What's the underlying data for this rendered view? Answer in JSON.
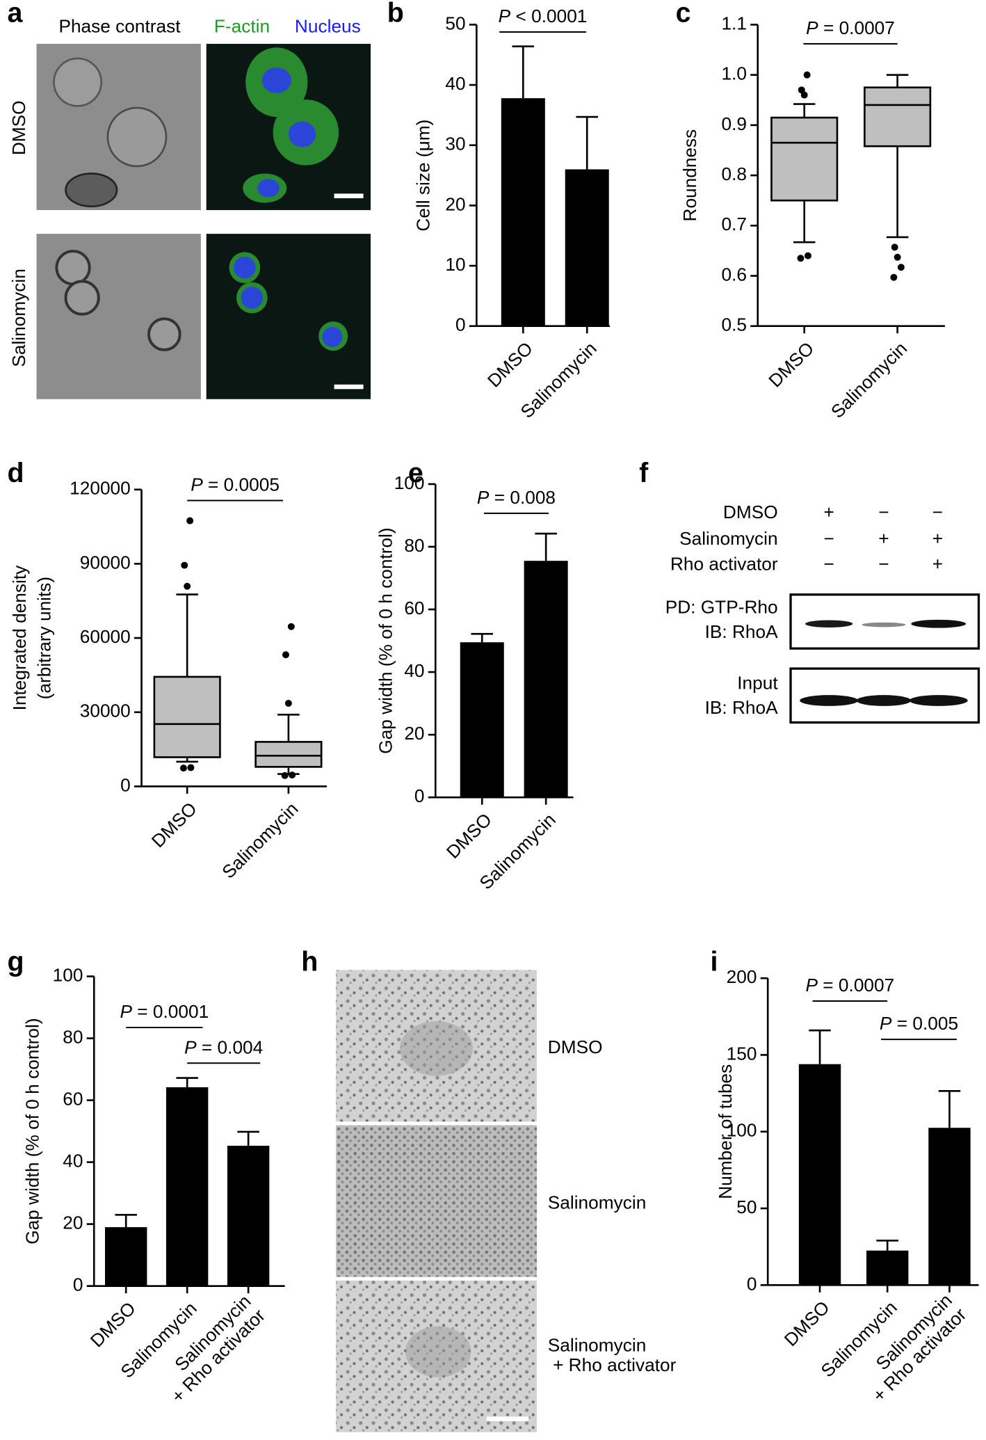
{
  "figure_a": {
    "panel": "a",
    "headers": [
      "Phase contrast",
      "F-actin",
      "Nucleus"
    ],
    "rows": [
      "DMSO",
      "Salinomycin"
    ]
  },
  "chart_data": [
    {
      "type": "bar",
      "panel": "b",
      "y_label": "Cell size (μm)",
      "categories": [
        "DMSO",
        "Salinomycin"
      ],
      "values": [
        37.8,
        26
      ],
      "errors": [
        8.6,
        8.7
      ],
      "color": "#000000",
      "ylim": [
        0,
        50
      ],
      "yticks": [
        0,
        10,
        20,
        30,
        40,
        50
      ],
      "annotations": [
        "P < 0.0001"
      ]
    },
    {
      "type": "box",
      "panel": "c",
      "y_label": "Roundness",
      "categories": [
        "DMSO",
        "Salinomycin"
      ],
      "color": "#bfbfbf",
      "boxes": [
        {
          "whisker_low": 0.667,
          "q1": 0.75,
          "median": 0.865,
          "q3": 0.915,
          "whisker_high": 0.942,
          "outliers": [
            0.635,
            0.64,
            0.96,
            0.97,
            1.0
          ]
        },
        {
          "whisker_low": 0.677,
          "q1": 0.858,
          "median": 0.94,
          "q3": 0.975,
          "whisker_high": 1.0,
          "outliers": [
            0.597,
            0.617,
            0.637,
            0.657
          ]
        }
      ],
      "ylim": [
        0.5,
        1.1
      ],
      "yticks": [
        0.5,
        0.6,
        0.7,
        0.8,
        0.9,
        {
          "value": 1,
          "label": "1.0"
        },
        1.1
      ],
      "annotations": [
        "P = 0.0007"
      ]
    },
    {
      "type": "box",
      "panel": "d",
      "y_label": [
        "Integrated density",
        "(arbitrary units)"
      ],
      "categories": [
        "DMSO",
        "Salinomycin"
      ],
      "color": "#bfbfbf",
      "boxes": [
        {
          "whisker_low": 10000,
          "q1": 11800,
          "median": 25200,
          "q3": 44300,
          "whisker_high": 77600,
          "outliers": [
            7400,
            7600,
            80900,
            89400,
            107400
          ]
        },
        {
          "whisker_low": 5000,
          "q1": 7900,
          "median": 12400,
          "q3": 18000,
          "whisker_high": 29000,
          "outliers": [
            4400,
            4600,
            33600,
            53200,
            64600
          ]
        }
      ],
      "ylim": [
        0,
        120000
      ],
      "yticks": [
        0,
        30000,
        60000,
        90000,
        120000
      ],
      "annotations": [
        "P = 0.0005"
      ]
    },
    {
      "type": "bar",
      "panel": "e",
      "y_label": "Gap width (% of 0 h control)",
      "categories": [
        "DMSO",
        "Salinomycin"
      ],
      "values": [
        49.5,
        75.5
      ],
      "errors": [
        2.7,
        8.7
      ],
      "color": "#000000",
      "ylim": [
        0,
        100
      ],
      "yticks": [
        0,
        20,
        40,
        60,
        80,
        100
      ],
      "annotations": [
        "P = 0.008"
      ]
    },
    {
      "type": "bar",
      "panel": "g",
      "y_label": "Gap width (% of 0 h control)",
      "categories": [
        "DMSO",
        "Salinomycin",
        "Salinomycin\n+ Rho activator"
      ],
      "values": [
        19,
        64.2,
        45.3
      ],
      "errors": [
        4,
        3,
        4.5
      ],
      "color": "#000000",
      "ylim": [
        0,
        100
      ],
      "yticks": [
        0,
        20,
        40,
        60,
        80,
        100
      ],
      "annotations": [
        "P = 0.0001",
        "P = 0.004"
      ]
    },
    {
      "type": "bar",
      "panel": "i",
      "y_label": "Number of tubes",
      "categories": [
        "DMSO",
        "Salinomycin",
        "Salinomycin\n+ Rho activator"
      ],
      "values": [
        144,
        22.5,
        102.5
      ],
      "errors": [
        22,
        6.5,
        24
      ],
      "color": "#000000",
      "ylim": [
        0,
        200
      ],
      "yticks": [
        0,
        50,
        100,
        150,
        200
      ],
      "annotations": [
        "P = 0.0007",
        "P = 0.005"
      ]
    }
  ],
  "figure_f": {
    "panel": "f",
    "conditions": [
      {
        "label": "DMSO",
        "marks": [
          "+",
          "−",
          "−"
        ]
      },
      {
        "label": "Salinomycin",
        "marks": [
          "−",
          "+",
          "+"
        ]
      },
      {
        "label": "Rho activator",
        "marks": [
          "−",
          "−",
          "+"
        ]
      }
    ],
    "blots": [
      {
        "lines": [
          "PD: GTP-Rho",
          "IB: RhoA"
        ]
      },
      {
        "lines": [
          "Input",
          "IB: RhoA"
        ]
      }
    ]
  },
  "figure_h": {
    "panel": "h",
    "rows": [
      "DMSO",
      "Salinomycin",
      "Salinomycin\n+ Rho activator"
    ]
  }
}
